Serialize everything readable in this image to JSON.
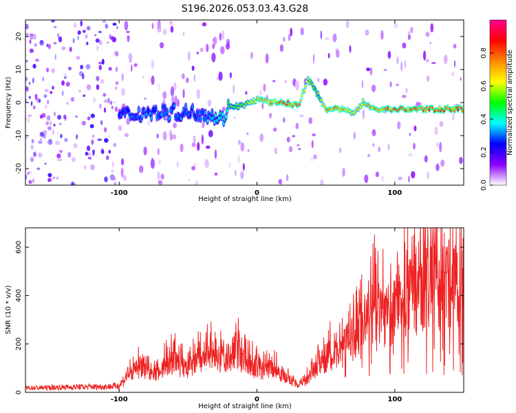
{
  "title": "S196.2026.053.03.43.G28",
  "chart_data": [
    {
      "type": "heatmap",
      "xlabel": "Height of straight line (km)",
      "ylabel": "Frequency (Hz)",
      "xlim": [
        -168,
        150
      ],
      "ylim": [
        -25,
        25
      ],
      "xticks": [
        -100,
        0,
        100
      ],
      "yticks": [
        -20,
        -10,
        0,
        10,
        20
      ],
      "colorbar": {
        "label": "Normalized spectral amplitude",
        "range": [
          0,
          1
        ],
        "ticks": [
          "0.0",
          "0.2",
          "0.4",
          "0.6",
          "0.8"
        ],
        "tick_values": [
          0,
          0.2,
          0.4,
          0.6,
          0.8
        ],
        "colors": [
          "#ffffff",
          "#8a00ff",
          "#0000ff",
          "#00ffff",
          "#00ff00",
          "#ffff00",
          "#ff8800",
          "#ff0000",
          "#ff0090"
        ]
      },
      "signal_track": [
        {
          "x": -100,
          "f": -4,
          "amp": 0.3
        },
        {
          "x": -80,
          "f": -3,
          "amp": 0.35
        },
        {
          "x": -60,
          "f": -3,
          "amp": 0.35
        },
        {
          "x": -40,
          "f": -3,
          "amp": 0.35
        },
        {
          "x": -25,
          "f": -5,
          "amp": 0.45
        },
        {
          "x": -20,
          "f": -1,
          "amp": 0.55
        },
        {
          "x": -10,
          "f": -1,
          "amp": 0.6
        },
        {
          "x": 0,
          "f": 1,
          "amp": 0.75
        },
        {
          "x": 10,
          "f": 0,
          "amp": 0.8
        },
        {
          "x": 20,
          "f": 0,
          "amp": 0.85
        },
        {
          "x": 30,
          "f": -1,
          "amp": 0.85
        },
        {
          "x": 37,
          "f": 7,
          "amp": 0.65
        },
        {
          "x": 45,
          "f": 2,
          "amp": 0.55
        },
        {
          "x": 50,
          "f": -2,
          "amp": 0.85
        },
        {
          "x": 60,
          "f": -2,
          "amp": 0.85
        },
        {
          "x": 70,
          "f": -3,
          "amp": 0.7
        },
        {
          "x": 77,
          "f": 0,
          "amp": 0.7
        },
        {
          "x": 85,
          "f": -2,
          "amp": 0.85
        },
        {
          "x": 100,
          "f": -2,
          "amp": 0.85
        },
        {
          "x": 115,
          "f": -2,
          "amp": 0.88
        },
        {
          "x": 130,
          "f": -2,
          "amp": 0.88
        },
        {
          "x": 150,
          "f": -2,
          "amp": 0.9
        }
      ]
    },
    {
      "type": "line",
      "xlabel": "Height of straight line (km)",
      "ylabel": "SNR (10 * v/v)",
      "xlim": [
        -168,
        150
      ],
      "ylim": [
        0,
        680
      ],
      "xticks": [
        -100,
        0,
        100
      ],
      "yticks": [
        0,
        200,
        400,
        600
      ],
      "line_color": "#ee2222",
      "series": [
        {
          "name": "SNR",
          "x": [
            -168,
            -150,
            -130,
            -110,
            -100,
            -95,
            -90,
            -85,
            -80,
            -75,
            -70,
            -65,
            -60,
            -55,
            -50,
            -45,
            -40,
            -35,
            -30,
            -25,
            -20,
            -15,
            -10,
            -5,
            0,
            5,
            10,
            15,
            20,
            25,
            30,
            35,
            40,
            45,
            50,
            55,
            60,
            65,
            70,
            75,
            80,
            85,
            90,
            95,
            100,
            105,
            110,
            115,
            120,
            125,
            130,
            135,
            140,
            145,
            150
          ],
          "y": [
            20,
            22,
            25,
            26,
            30,
            70,
            100,
            130,
            110,
            90,
            120,
            140,
            160,
            130,
            120,
            150,
            170,
            180,
            200,
            170,
            180,
            220,
            160,
            140,
            120,
            110,
            130,
            110,
            80,
            50,
            30,
            60,
            110,
            140,
            180,
            200,
            240,
            250,
            260,
            330,
            380,
            420,
            430,
            400,
            410,
            440,
            470,
            500,
            540,
            560,
            570,
            560,
            570,
            580,
            560
          ]
        }
      ]
    }
  ]
}
